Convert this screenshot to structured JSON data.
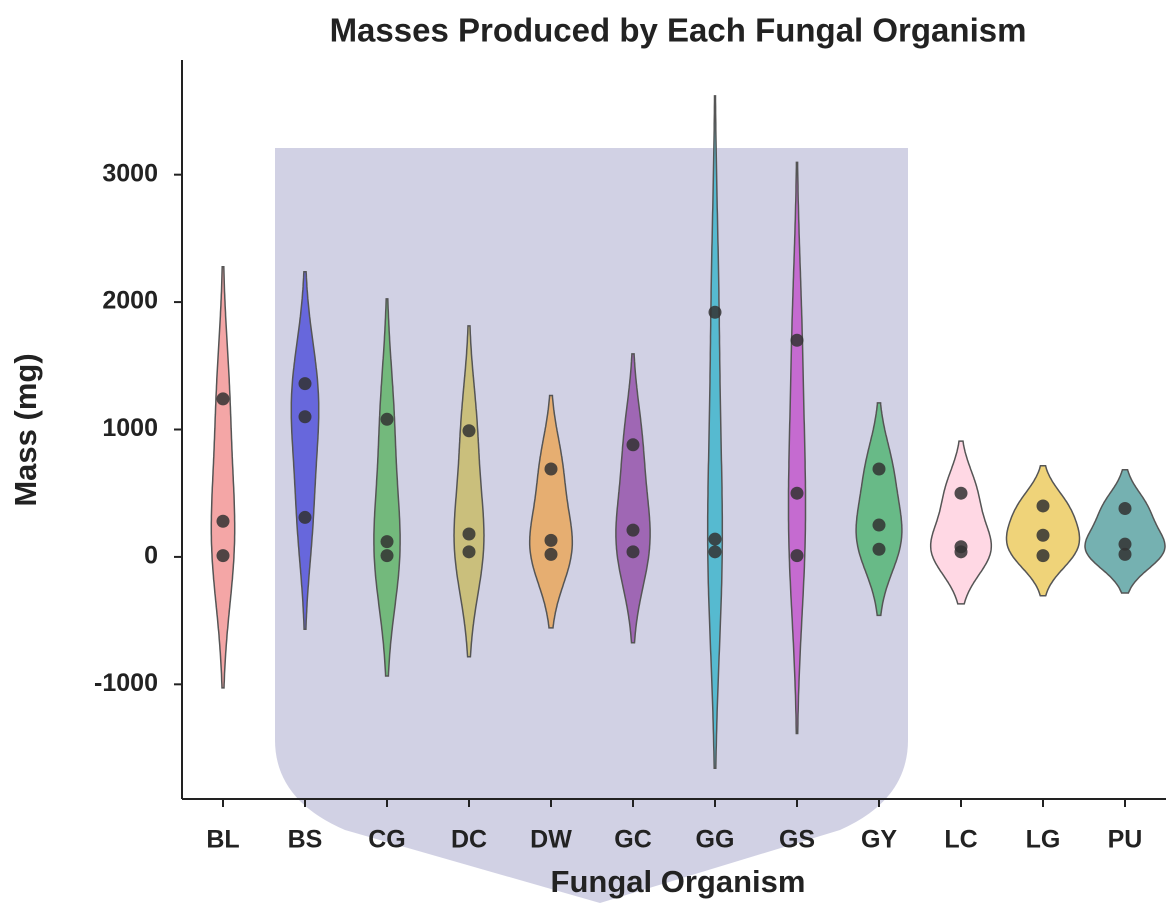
{
  "chart_data": {
    "type": "violin",
    "title": "Masses Produced by Each Fungal Organism",
    "x_label": "Fungal Organism",
    "y_label": "Mass (mg)",
    "categories": [
      "BL",
      "BS",
      "CG",
      "DC",
      "DW",
      "GC",
      "GG",
      "GS",
      "GY",
      "LC",
      "LG",
      "PU"
    ],
    "values": [
      [
        1240,
        280,
        10
      ],
      [
        1360,
        1100,
        310
      ],
      [
        1080,
        120,
        10
      ],
      [
        990,
        180,
        40
      ],
      [
        690,
        130,
        20
      ],
      [
        880,
        210,
        40
      ],
      [
        1920,
        140,
        40
      ],
      [
        1700,
        500,
        10
      ],
      [
        690,
        250,
        60
      ],
      [
        500,
        80,
        40
      ],
      [
        400,
        170,
        10
      ],
      [
        380,
        100,
        20
      ]
    ],
    "colors": [
      "#f08080",
      "#3a3ad8",
      "#4caf50",
      "#c8b850",
      "#f0a040",
      "#8a3aa0",
      "#22b0c8",
      "#c040c8",
      "#3cb060",
      "#ffc8d8",
      "#e8c040",
      "#3a9090"
    ],
    "ylim": [
      -1900,
      3900
    ],
    "yticks": [
      -1000,
      0,
      1000,
      2000,
      3000
    ]
  }
}
